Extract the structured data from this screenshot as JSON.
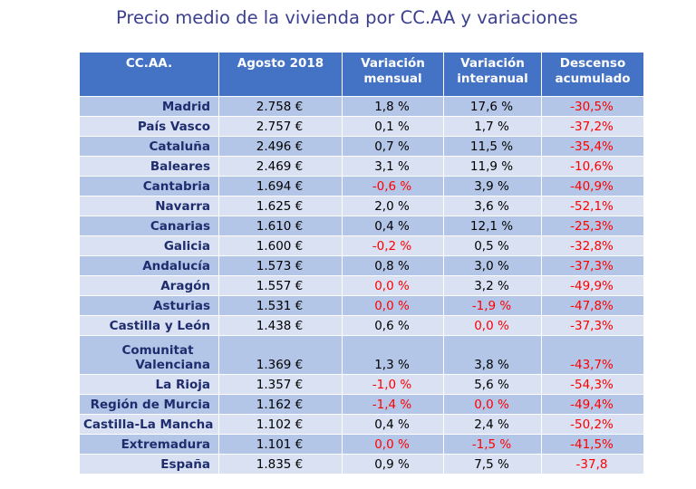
{
  "title": "Precio medio de la vivienda por CC.AA y variaciones",
  "headers": {
    "ccaa": "CC.AA.",
    "agosto": "Agosto 2018",
    "mensual": "Variación mensual",
    "interanual": "Variación interanual",
    "descenso": "Descenso acumulado"
  },
  "rows": [
    {
      "name": "Madrid",
      "price": "2.758 €",
      "monthly": "1,8 %",
      "yearly": "17,6 %",
      "decline": "-30,5%"
    },
    {
      "name": "País Vasco",
      "price": "2.757 €",
      "monthly": "0,1 %",
      "yearly": "1,7 %",
      "decline": "-37,2%"
    },
    {
      "name": "Cataluña",
      "price": "2.496 €",
      "monthly": "0,7 %",
      "yearly": "11,5 %",
      "decline": "-35,4%"
    },
    {
      "name": "Baleares",
      "price": "2.469 €",
      "monthly": "3,1 %",
      "yearly": "11,9 %",
      "decline": "-10,6%"
    },
    {
      "name": "Cantabria",
      "price": "1.694 €",
      "monthly": "-0,6 %",
      "yearly": "3,9 %",
      "decline": "-40,9%"
    },
    {
      "name": "Navarra",
      "price": "1.625 €",
      "monthly": "2,0 %",
      "yearly": "3,6 %",
      "decline": "-52,1%"
    },
    {
      "name": "Canarias",
      "price": "1.610 €",
      "monthly": "0,4 %",
      "yearly": "12,1 %",
      "decline": "-25,3%"
    },
    {
      "name": "Galicia",
      "price": "1.600 €",
      "monthly": "-0,2 %",
      "yearly": "0,5 %",
      "decline": "-32,8%"
    },
    {
      "name": "Andalucía",
      "price": "1.573 €",
      "monthly": "0,8 %",
      "yearly": "3,0 %",
      "decline": "-37,3%"
    },
    {
      "name": "Aragón",
      "price": "1.557 €",
      "monthly": "0,0 %",
      "yearly": "3,2 %",
      "decline": "-49,9%"
    },
    {
      "name": "Asturias",
      "price": "1.531 €",
      "monthly": "0,0 %",
      "yearly": "-1,9 %",
      "decline": "-47,8%"
    },
    {
      "name": "Castilla y León",
      "price": "1.438 €",
      "monthly": "0,6 %",
      "yearly": "0,0 %",
      "decline": "-37,3%"
    },
    {
      "name": "Comunitat Valenciana",
      "price": "1.369 €",
      "monthly": "1,3 %",
      "yearly": "3,8 %",
      "decline": "-43,7%"
    },
    {
      "name": "La Rioja",
      "price": "1.357 €",
      "monthly": "-1,0 %",
      "yearly": "5,6 %",
      "decline": "-54,3%"
    },
    {
      "name": "Región de Murcia",
      "price": "1.162 €",
      "monthly": "-1,4 %",
      "yearly": "0,0 %",
      "decline": "-49,4%"
    },
    {
      "name": "Castilla-La Mancha",
      "price": "1.102 €",
      "monthly": "0,4 %",
      "yearly": "2,4 %",
      "decline": "-50,2%"
    },
    {
      "name": "Extremadura",
      "price": "1.101 €",
      "monthly": "0,0 %",
      "yearly": "-1,5 %",
      "decline": "-41,5%"
    },
    {
      "name": "España",
      "price": "1.835 €",
      "monthly": "0,9 %",
      "yearly": "7,5 %",
      "decline": "-37,8"
    }
  ]
}
